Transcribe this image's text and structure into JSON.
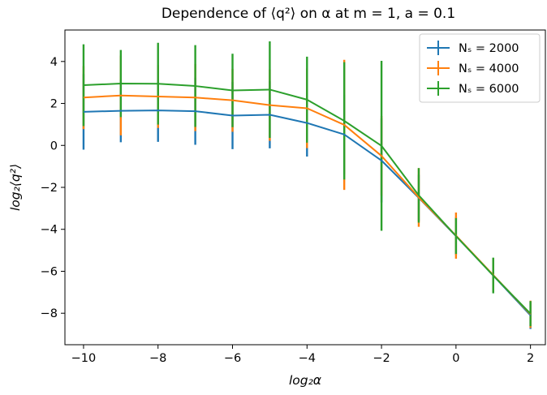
{
  "chart_data": {
    "type": "line",
    "title": "Dependence of ⟨q²⟩ on α at m = 1, a = 0.1",
    "xlabel": "log₂α",
    "ylabel": "log₂⟨q²⟩",
    "xlim": [
      -10.5,
      2.4
    ],
    "ylim": [
      -9.5,
      5.5
    ],
    "x_ticks": [
      -10,
      -8,
      -6,
      -4,
      -2,
      0,
      2
    ],
    "y_ticks": [
      -8,
      -6,
      -4,
      -2,
      0,
      2,
      4
    ],
    "x_tick_labels": [
      "−10",
      "−8",
      "−6",
      "−4",
      "−2",
      "0",
      "2"
    ],
    "y_tick_labels": [
      "−8",
      "−6",
      "−4",
      "−2",
      "0",
      "2",
      "4"
    ],
    "grid": false,
    "legend_position": "top-right",
    "x": [
      -10,
      -9,
      -8,
      -7,
      -6,
      -5,
      -4,
      -3,
      -2,
      -1,
      0,
      1,
      2
    ],
    "series": [
      {
        "name": "N_s = 2000",
        "legend_label": "Nₛ = 2000",
        "color": "#1f77b4",
        "values": [
          1.6,
          1.65,
          1.67,
          1.63,
          1.42,
          1.46,
          1.07,
          0.52,
          -0.72,
          -2.5,
          -4.32,
          -6.2,
          -8.1
        ],
        "errors": [
          1.8,
          1.5,
          1.5,
          1.6,
          1.6,
          1.6,
          1.6,
          1.9,
          2.0,
          1.1,
          0.9,
          0.8,
          0.65
        ]
      },
      {
        "name": "N_s = 4000",
        "legend_label": "Nₛ = 4000",
        "color": "#ff7f0e",
        "values": [
          2.28,
          2.38,
          2.33,
          2.28,
          2.15,
          1.92,
          1.77,
          0.98,
          -0.5,
          -2.48,
          -4.3,
          -6.18,
          -8.05
        ],
        "errors": [
          1.5,
          1.9,
          1.5,
          1.6,
          1.5,
          1.7,
          1.9,
          3.1,
          1.9,
          1.4,
          1.1,
          0.8,
          0.65
        ]
      },
      {
        "name": "N_s = 6000",
        "legend_label": "Nₛ = 6000",
        "color": "#2ca02c",
        "values": [
          2.87,
          2.95,
          2.94,
          2.83,
          2.62,
          2.66,
          2.18,
          1.17,
          -0.02,
          -2.38,
          -4.32,
          -6.2,
          -8.02
        ],
        "errors": [
          1.95,
          1.6,
          1.95,
          1.95,
          1.75,
          2.3,
          2.05,
          2.8,
          4.05,
          1.3,
          0.85,
          0.85,
          0.6
        ]
      }
    ]
  }
}
